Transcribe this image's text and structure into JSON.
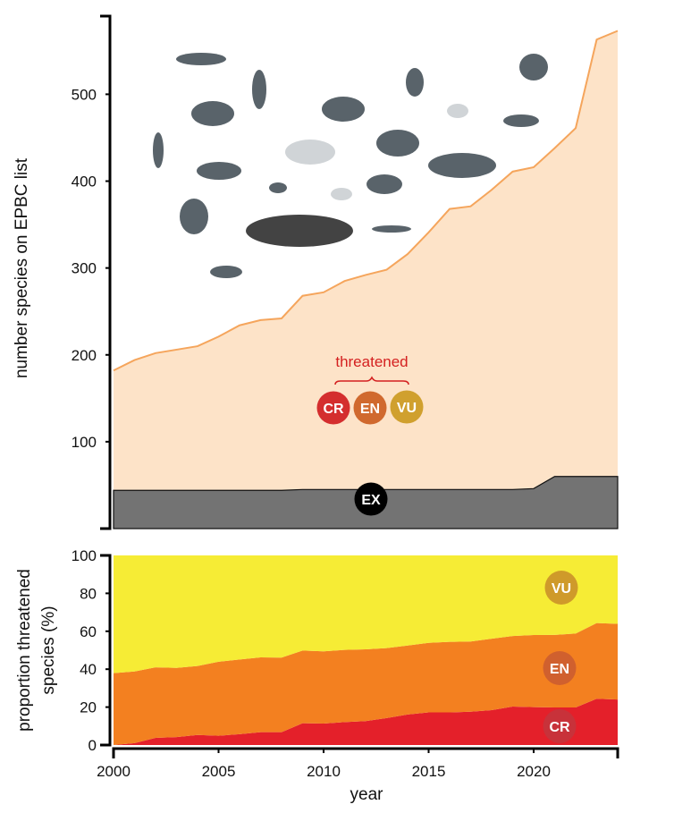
{
  "chart_data": [
    {
      "type": "area",
      "ylabel": "number species on EPBC list",
      "xlim": [
        2000,
        2024
      ],
      "ylim": [
        0,
        590
      ],
      "yticks": [
        100,
        200,
        300,
        400,
        500
      ],
      "grid": false,
      "x": [
        2000,
        2001,
        2002,
        2003,
        2004,
        2005,
        2006,
        2007,
        2008,
        2009,
        2010,
        2011,
        2012,
        2013,
        2014,
        2015,
        2016,
        2017,
        2018,
        2019,
        2020,
        2021,
        2022,
        2023,
        2024
      ],
      "series": [
        {
          "name": "EX",
          "values": [
            44,
            44,
            44,
            44,
            44,
            44,
            44,
            44,
            44,
            45,
            45,
            45,
            45,
            45,
            45,
            45,
            45,
            45,
            45,
            45,
            46,
            60,
            60,
            60,
            60
          ],
          "color": "#737373"
        },
        {
          "name": "threatened",
          "values": [
            182,
            194,
            202,
            206,
            210,
            221,
            234,
            240,
            242,
            268,
            272,
            285,
            292,
            298,
            316,
            341,
            368,
            371,
            390,
            411,
            416,
            438,
            461,
            563,
            573
          ],
          "color": "#fde3c8",
          "line_color": "#f5a55c"
        }
      ],
      "annotations": {
        "threatened_label": "threatened",
        "badges": [
          {
            "label": "CR",
            "color": "#d42e2e"
          },
          {
            "label": "EN",
            "color": "#d0692e"
          },
          {
            "label": "VU",
            "color": "#d0a02e"
          },
          {
            "label": "EX",
            "color": "#000000"
          }
        ]
      },
      "decorations": "animal-illustrations"
    },
    {
      "type": "area",
      "stacked": true,
      "ylabel_lines": [
        "proportion threatened",
        "species (%)"
      ],
      "xlabel": "year",
      "xlim": [
        2000,
        2024
      ],
      "ylim": [
        0,
        100
      ],
      "yticks": [
        0,
        20,
        40,
        60,
        80,
        100
      ],
      "xticks": [
        2000,
        2005,
        2010,
        2015,
        2020
      ],
      "grid": false,
      "x": [
        2000,
        2001,
        2002,
        2003,
        2004,
        2005,
        2006,
        2007,
        2008,
        2009,
        2010,
        2011,
        2012,
        2013,
        2014,
        2015,
        2016,
        2017,
        2018,
        2019,
        2020,
        2021,
        2022,
        2023,
        2024
      ],
      "series": [
        {
          "name": "CR",
          "values": [
            0,
            1,
            3.8,
            4.2,
            5.3,
            4.9,
            5.7,
            6.8,
            6.8,
            11.5,
            11.3,
            12.1,
            12.6,
            14.2,
            16.1,
            17.2,
            17.2,
            17.6,
            18.4,
            20.3,
            20,
            19.8,
            19.8,
            24.4,
            24
          ],
          "color": "#e4202a",
          "badge_color": "#c8323a"
        },
        {
          "name": "EN",
          "values": [
            37.9,
            37.8,
            37.2,
            36.5,
            36.4,
            39,
            39.4,
            39.4,
            39.3,
            38.3,
            38.1,
            38.1,
            37.9,
            36.9,
            36.4,
            36.7,
            37.2,
            37,
            37.7,
            37.2,
            38,
            38.3,
            39,
            39.9,
            39.9
          ],
          "color": "#f38020",
          "badge_color": "#d0602e"
        },
        {
          "name": "VU",
          "values": [
            62.1,
            61.2,
            59,
            59.3,
            58.3,
            56.1,
            54.9,
            53.8,
            53.9,
            50.2,
            50.6,
            49.8,
            49.5,
            48.9,
            47.5,
            46.1,
            45.6,
            45.4,
            43.9,
            42.5,
            42,
            41.9,
            41.2,
            35.7,
            36.1
          ],
          "color": "#f6ec35",
          "badge_color": "#cf9a2a"
        }
      ]
    }
  ]
}
